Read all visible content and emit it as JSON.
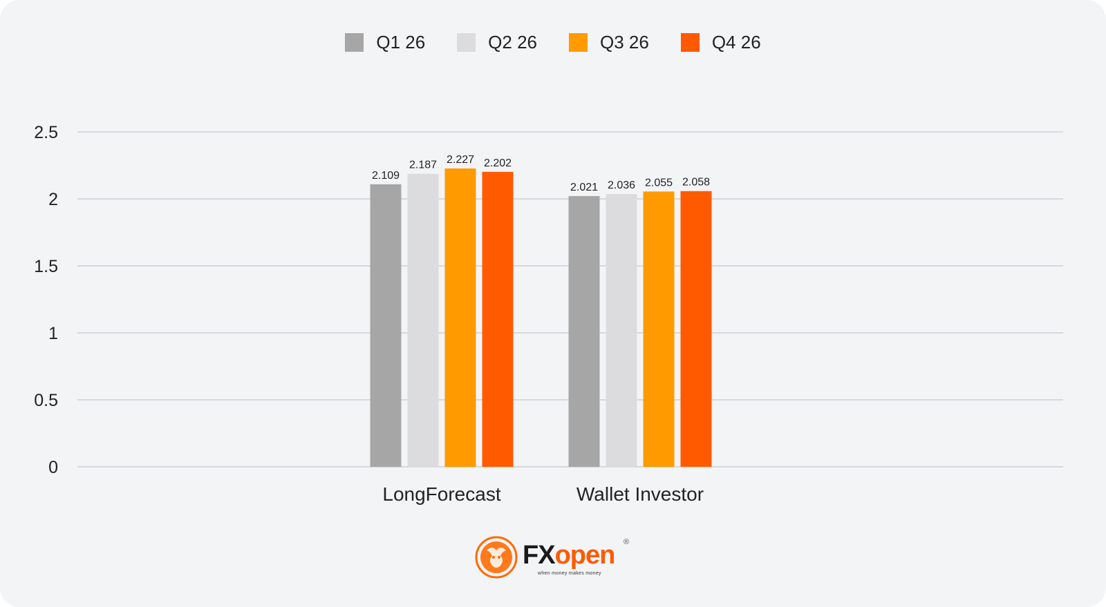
{
  "legend": [
    {
      "label": "Q1 26",
      "color": "#a6a6a6"
    },
    {
      "label": "Q2 26",
      "color": "#dcdcde"
    },
    {
      "label": "Q3 26",
      "color": "#ff9a00"
    },
    {
      "label": "Q4 26",
      "color": "#ff5a00"
    }
  ],
  "chart_data": {
    "type": "bar",
    "categories": [
      "LongForecast",
      "Wallet Investor"
    ],
    "series": [
      {
        "name": "Q1 26",
        "values": [
          2.109,
          2.021
        ]
      },
      {
        "name": "Q2 26",
        "values": [
          2.187,
          2.036
        ]
      },
      {
        "name": "Q3 26",
        "values": [
          2.227,
          2.055
        ]
      },
      {
        "name": "Q4 26",
        "values": [
          2.202,
          2.058
        ]
      }
    ],
    "data_labels": [
      [
        "2.109",
        "2.021"
      ],
      [
        "2.187",
        "2.036"
      ],
      [
        "2.227",
        "2.055"
      ],
      [
        "2.202",
        "2.058"
      ]
    ],
    "yticks": [
      "0",
      "0.5",
      "1",
      "1.5",
      "2",
      "2.5"
    ],
    "ylim": [
      0,
      2.5
    ],
    "grid": true,
    "legend_position": "top-center"
  },
  "logo": {
    "brand_fx": "FX",
    "brand_open": "open",
    "registered": "®",
    "tagline": "when money makes money"
  }
}
